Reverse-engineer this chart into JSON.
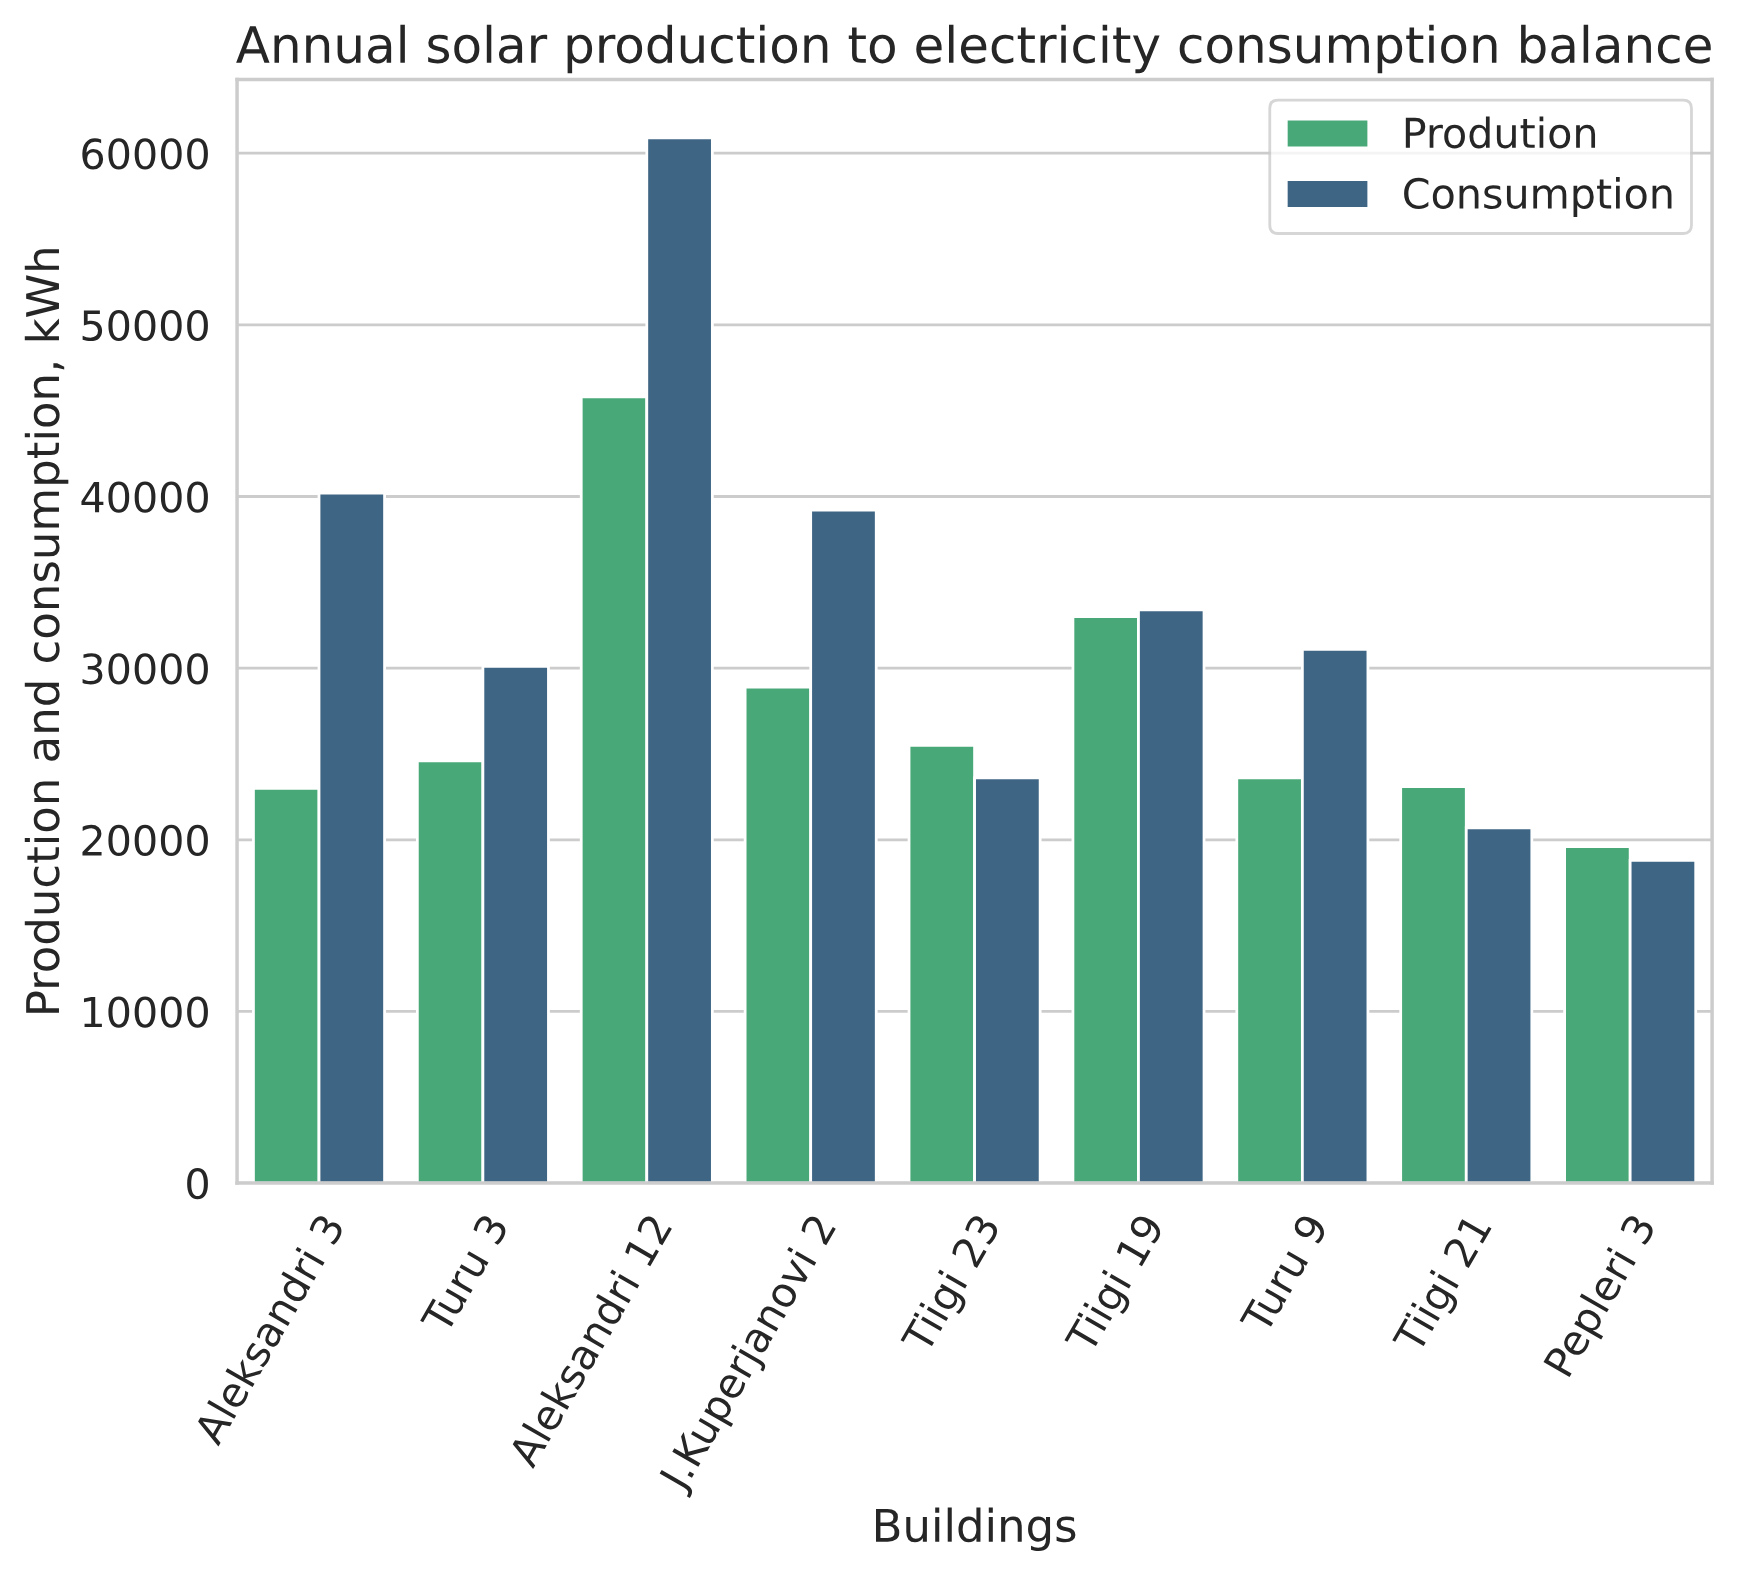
{
  "chart_data": {
    "type": "bar",
    "title": "Annual solar production to electricity consumption balance",
    "xlabel": "Buildings",
    "ylabel": "Production and consumption, kWh",
    "categories": [
      "Aleksandri 3",
      "Turu 3",
      "Aleksandri 12",
      "J.Kuperjanovi 2",
      "Tiigi 23",
      "Tiigi 19",
      "Turu 9",
      "Tiigi 21",
      "Pepleri 3"
    ],
    "series": [
      {
        "name": "Prodution",
        "color": "#48a878",
        "values": [
          23000,
          24600,
          45800,
          28900,
          25500,
          33000,
          23600,
          23100,
          19600
        ]
      },
      {
        "name": "Consumption",
        "color": "#3e6584",
        "values": [
          40200,
          30100,
          60900,
          39200,
          23600,
          33400,
          31100,
          20700,
          18800
        ]
      }
    ],
    "ylim": [
      0,
      64300
    ],
    "yticks": [
      0,
      10000,
      20000,
      30000,
      40000,
      50000,
      60000
    ],
    "grid": "y",
    "legend": "top right"
  }
}
